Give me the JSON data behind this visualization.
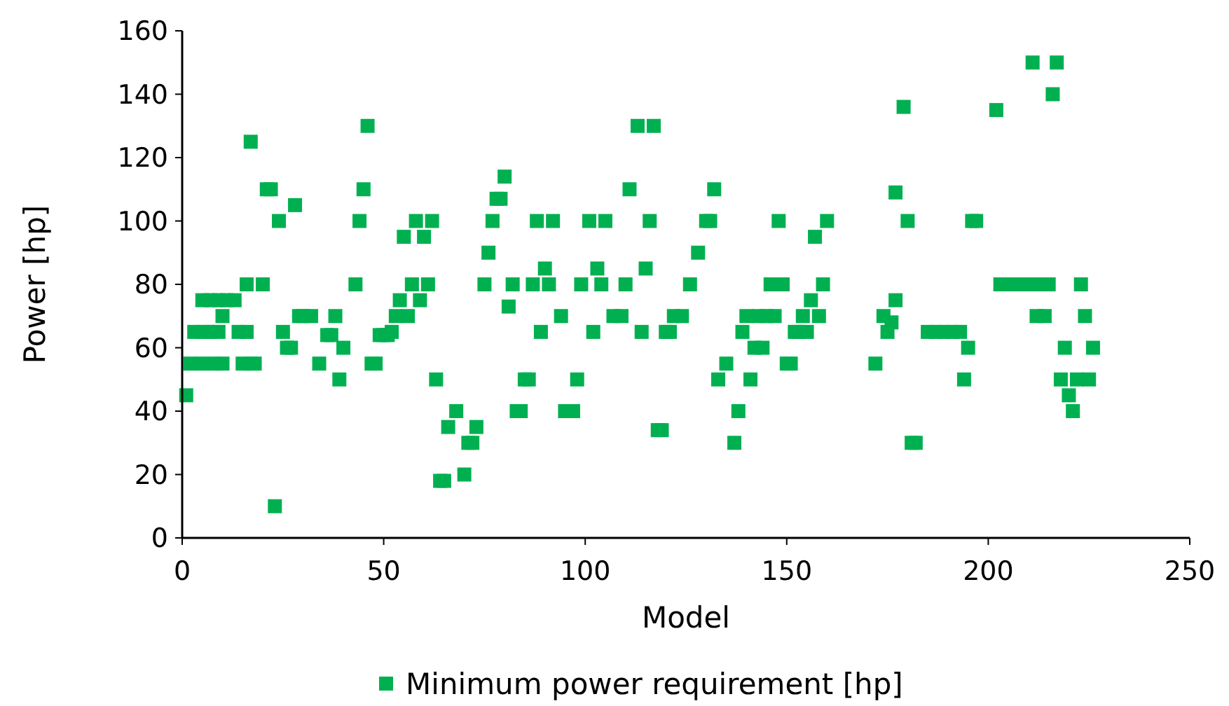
{
  "chart_data": {
    "type": "scatter",
    "xlabel": "Model",
    "ylabel": "Power [hp]",
    "xlim": [
      0,
      250
    ],
    "xticks": [
      0,
      50,
      100,
      150,
      200,
      250
    ],
    "ylim": [
      0,
      160
    ],
    "yticks": [
      0,
      20,
      40,
      60,
      80,
      100,
      120,
      140,
      160
    ],
    "grid": false,
    "legend": "bottom",
    "marker": "square",
    "series": [
      {
        "name": "Minimum power requirement [hp]",
        "color": "#00b050",
        "x": [
          1,
          2,
          5,
          8,
          10,
          3,
          5,
          7,
          9,
          5,
          7,
          9,
          11,
          13,
          10,
          14,
          16,
          15,
          17,
          18,
          16,
          20,
          17,
          21,
          22,
          24,
          28,
          23,
          25,
          26,
          27,
          29,
          30,
          32,
          34,
          36,
          37,
          38,
          39,
          40,
          43,
          44,
          45,
          46,
          47,
          48,
          49,
          50,
          51,
          52,
          53,
          54,
          55,
          56,
          57,
          58,
          59,
          60,
          61,
          62,
          63,
          64,
          65,
          66,
          68,
          70,
          71,
          72,
          73,
          75,
          76,
          77,
          78,
          79,
          80,
          81,
          82,
          83,
          84,
          85,
          86,
          87,
          88,
          89,
          90,
          91,
          92,
          94,
          95,
          97,
          98,
          99,
          101,
          102,
          103,
          104,
          105,
          107,
          109,
          110,
          111,
          113,
          114,
          115,
          116,
          117,
          118,
          119,
          120,
          121,
          122,
          124,
          126,
          128,
          130,
          131,
          132,
          133,
          135,
          137,
          138,
          139,
          140,
          141,
          142,
          143,
          144,
          145,
          146,
          147,
          148,
          149,
          150,
          151,
          152,
          153,
          154,
          155,
          156,
          157,
          158,
          159,
          160,
          172,
          174,
          175,
          176,
          177,
          177,
          179,
          180,
          181,
          182,
          185,
          187,
          189,
          191,
          193,
          194,
          195,
          196,
          197,
          202,
          203,
          205,
          207,
          209,
          211,
          213,
          215,
          211,
          217,
          216,
          212,
          214,
          218,
          219,
          220,
          221,
          222,
          223,
          224,
          225,
          226
        ],
        "values": [
          45,
          55,
          55,
          55,
          55,
          65,
          65,
          65,
          65,
          75,
          75,
          75,
          75,
          75,
          70,
          65,
          65,
          55,
          55,
          55,
          80,
          80,
          125,
          110,
          110,
          100,
          105,
          10,
          65,
          60,
          60,
          70,
          70,
          70,
          55,
          64,
          64,
          70,
          50,
          60,
          80,
          100,
          110,
          130,
          55,
          55,
          64,
          64,
          64,
          65,
          70,
          75,
          95,
          70,
          80,
          100,
          75,
          95,
          80,
          100,
          50,
          18,
          18,
          35,
          40,
          20,
          30,
          30,
          35,
          80,
          90,
          100,
          107,
          107,
          114,
          73,
          80,
          40,
          40,
          50,
          50,
          80,
          100,
          65,
          85,
          80,
          100,
          70,
          40,
          40,
          50,
          80,
          100,
          65,
          85,
          80,
          100,
          70,
          70,
          80,
          110,
          130,
          65,
          85,
          100,
          130,
          34,
          34,
          65,
          65,
          70,
          70,
          80,
          90,
          100,
          100,
          110,
          50,
          55,
          30,
          40,
          65,
          70,
          50,
          60,
          70,
          60,
          70,
          80,
          70,
          100,
          80,
          55,
          55,
          65,
          65,
          70,
          65,
          75,
          95,
          70,
          80,
          100,
          55,
          70,
          65,
          68,
          75,
          109,
          136,
          100,
          30,
          30,
          65,
          65,
          65,
          65,
          65,
          50,
          60,
          100,
          100,
          135,
          80,
          80,
          80,
          80,
          80,
          80,
          80,
          150,
          150,
          140,
          70,
          70,
          50,
          60,
          45,
          40,
          50,
          80,
          70,
          50,
          60
        ]
      }
    ]
  }
}
